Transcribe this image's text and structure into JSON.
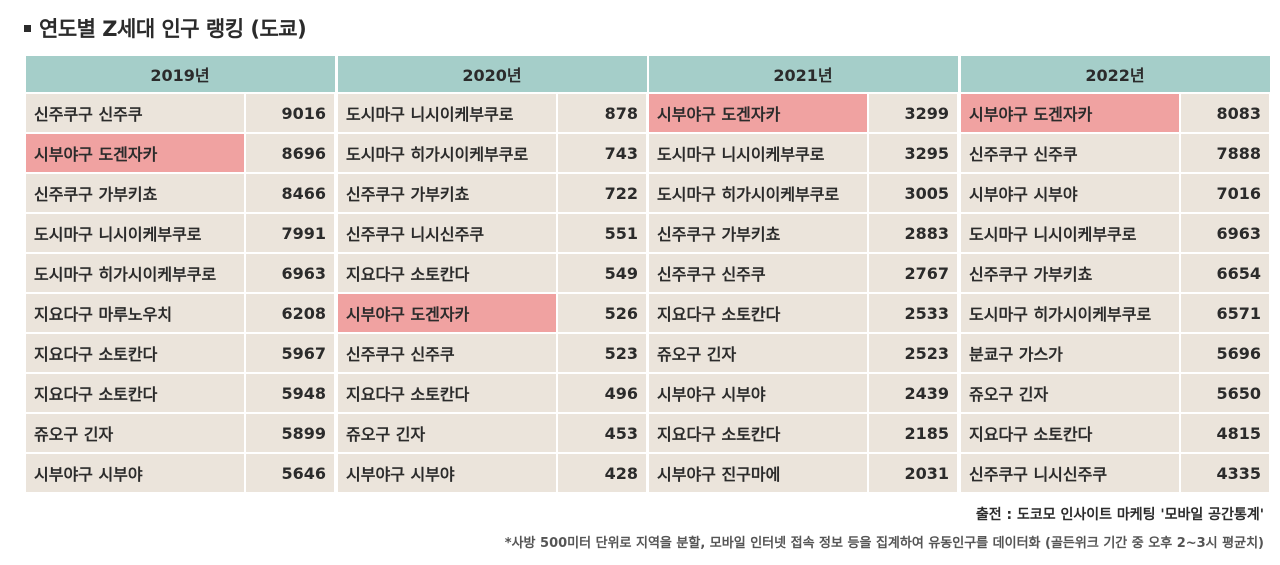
{
  "title": "연도별 Z세대 인구 랭킹 (도쿄)",
  "colors": {
    "header": "#a5cec9",
    "cell": "#ebe4db",
    "highlight": "#f0a2a1"
  },
  "years": [
    {
      "year": "2019년",
      "rows": [
        {
          "area": "신주쿠구 신주쿠",
          "value": "9016",
          "highlight": false
        },
        {
          "area": "시부야구 도겐자카",
          "value": "8696",
          "highlight": true
        },
        {
          "area": "신주쿠구 가부키쵸",
          "value": "8466",
          "highlight": false
        },
        {
          "area": "도시마구 니시이케부쿠로",
          "value": "7991",
          "highlight": false
        },
        {
          "area": "도시마구 히가시이케부쿠로",
          "value": "6963",
          "highlight": false
        },
        {
          "area": "지요다구 마루노우치",
          "value": "6208",
          "highlight": false
        },
        {
          "area": "지요다구 소토칸다",
          "value": "5967",
          "highlight": false
        },
        {
          "area": "지요다구 소토칸다",
          "value": "5948",
          "highlight": false
        },
        {
          "area": "쥬오구 긴자",
          "value": "5899",
          "highlight": false
        },
        {
          "area": "시부야구 시부야",
          "value": "5646",
          "highlight": false
        }
      ]
    },
    {
      "year": "2020년",
      "rows": [
        {
          "area": "도시마구 니시이케부쿠로",
          "value": "878",
          "highlight": false
        },
        {
          "area": "도시마구 히가시이케부쿠로",
          "value": "743",
          "highlight": false
        },
        {
          "area": "신주쿠구 가부키쵸",
          "value": "722",
          "highlight": false
        },
        {
          "area": "신주쿠구 니시신주쿠",
          "value": "551",
          "highlight": false
        },
        {
          "area": "지요다구 소토칸다",
          "value": "549",
          "highlight": false
        },
        {
          "area": "시부야구 도겐자카",
          "value": "526",
          "highlight": true
        },
        {
          "area": "신주쿠구 신주쿠",
          "value": "523",
          "highlight": false
        },
        {
          "area": "지요다구 소토칸다",
          "value": "496",
          "highlight": false
        },
        {
          "area": "쥬오구 긴자",
          "value": "453",
          "highlight": false
        },
        {
          "area": "시부야구 시부야",
          "value": "428",
          "highlight": false
        }
      ]
    },
    {
      "year": "2021년",
      "rows": [
        {
          "area": "시부야구 도겐자카",
          "value": "3299",
          "highlight": true
        },
        {
          "area": "도시마구 니시이케부쿠로",
          "value": "3295",
          "highlight": false
        },
        {
          "area": "도시마구 히가시이케부쿠로",
          "value": "3005",
          "highlight": false
        },
        {
          "area": "신주쿠구 가부키쵸",
          "value": "2883",
          "highlight": false
        },
        {
          "area": "신주쿠구 신주쿠",
          "value": "2767",
          "highlight": false
        },
        {
          "area": "지요다구 소토칸다",
          "value": "2533",
          "highlight": false
        },
        {
          "area": "쥬오구 긴자",
          "value": "2523",
          "highlight": false
        },
        {
          "area": "시부야구 시부야",
          "value": "2439",
          "highlight": false
        },
        {
          "area": "지요다구 소토칸다",
          "value": "2185",
          "highlight": false
        },
        {
          "area": "시부야구 진구마에",
          "value": "2031",
          "highlight": false
        }
      ]
    },
    {
      "year": "2022년",
      "rows": [
        {
          "area": "시부야구 도겐자카",
          "value": "8083",
          "highlight": true
        },
        {
          "area": "신주쿠구 신주쿠",
          "value": "7888",
          "highlight": false
        },
        {
          "area": "시부야구 시부야",
          "value": "7016",
          "highlight": false
        },
        {
          "area": "도시마구 니시이케부쿠로",
          "value": "6963",
          "highlight": false
        },
        {
          "area": "신주쿠구 가부키쵸",
          "value": "6654",
          "highlight": false
        },
        {
          "area": "도시마구 히가시이케부쿠로",
          "value": "6571",
          "highlight": false
        },
        {
          "area": "분쿄구 가스가",
          "value": "5696",
          "highlight": false
        },
        {
          "area": "쥬오구 긴자",
          "value": "5650",
          "highlight": false
        },
        {
          "area": "지요다구 소토칸다",
          "value": "4815",
          "highlight": false
        },
        {
          "area": "신주쿠구 니시신주쿠",
          "value": "4335",
          "highlight": false
        }
      ]
    }
  ],
  "source": "출전 : 도코모 인사이트 마케팅 '모바일 공간통계'",
  "note": "*사방 500미터 단위로 지역을 분할, 모바일 인터넷 접속 정보 등을 집계하여 유동인구를 데이터화 (골든위크 기간 중 오후 2~3시 평균치)"
}
